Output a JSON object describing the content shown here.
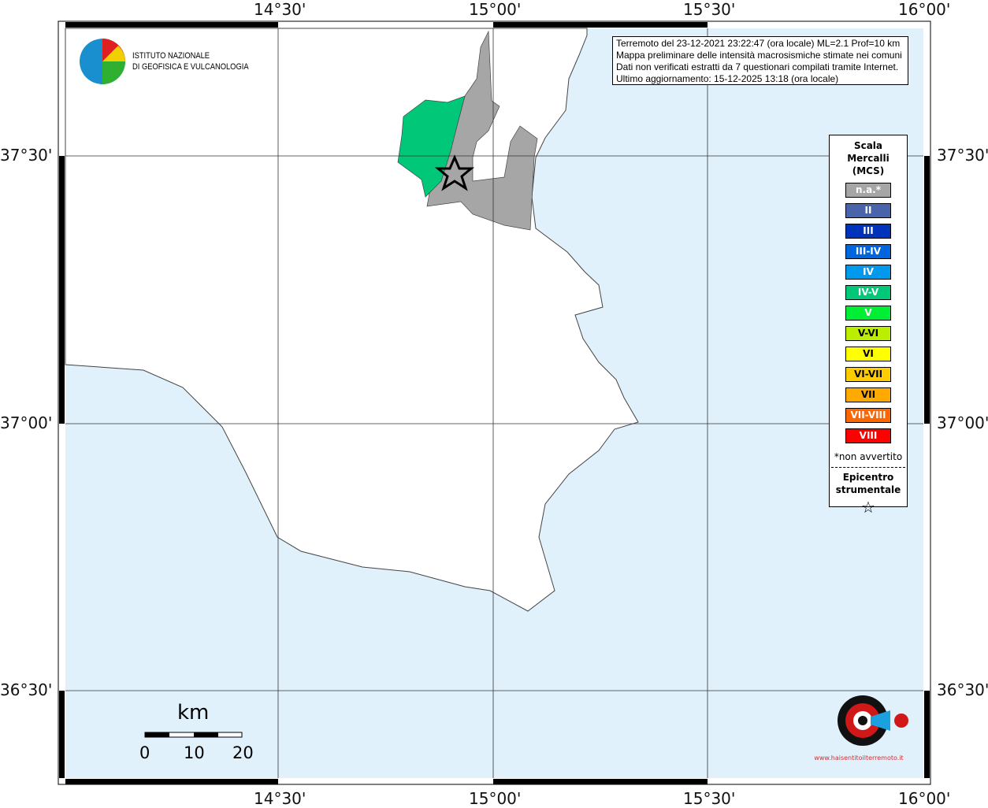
{
  "map": {
    "sea_color": "#e0f1fc",
    "land_color": "#ffffff",
    "lon_labels": [
      "14°30'",
      "15°00'",
      "15°30'",
      "16°00'"
    ],
    "lat_labels": [
      "37°30'",
      "37°00'",
      "36°30'"
    ]
  },
  "logo": {
    "line1": "ISTITUTO NAZIONALE",
    "line2": "DI GEOFISICA E VULCANOLOGIA"
  },
  "info": {
    "lines": [
      "Terremoto del 23-12-2021 23:22:47 (ora locale) ML=2.1 Prof=10 km",
      "Mappa preliminare delle intensità macrosismiche stimate nei comuni",
      "Dati non verificati estratti da 7 questionari compilati tramite Internet.",
      "Ultimo aggiornamento: 15-12-2025 13:18 (ora locale)"
    ]
  },
  "legend": {
    "title": [
      "Scala",
      "Mercalli",
      "(MCS)"
    ],
    "items": [
      {
        "label": "n.a.*",
        "color": "#a6a6a6"
      },
      {
        "label": "II",
        "color": "#4a64ac"
      },
      {
        "label": "III",
        "color": "#0033bb"
      },
      {
        "label": "III-IV",
        "color": "#0066dd"
      },
      {
        "label": "IV",
        "color": "#0099ee"
      },
      {
        "label": "IV-V",
        "color": "#00c878"
      },
      {
        "label": "V",
        "color": "#00ee33"
      },
      {
        "label": "V-VI",
        "color": "#bbee00"
      },
      {
        "label": "VI",
        "color": "#ffff00"
      },
      {
        "label": "VI-VII",
        "color": "#ffcc00"
      },
      {
        "label": "VII",
        "color": "#ffaa00"
      },
      {
        "label": "VII-VIII",
        "color": "#ff6600"
      },
      {
        "label": "VIII",
        "color": "#ff0000"
      }
    ],
    "note": "*non avvertito",
    "epicenter": [
      "Epicentro",
      "strumentale"
    ]
  },
  "scale": {
    "unit": "km",
    "ticks": [
      "0",
      "10",
      "20"
    ]
  },
  "brand": {
    "text": "www.haisentitoilterremoto.it"
  }
}
